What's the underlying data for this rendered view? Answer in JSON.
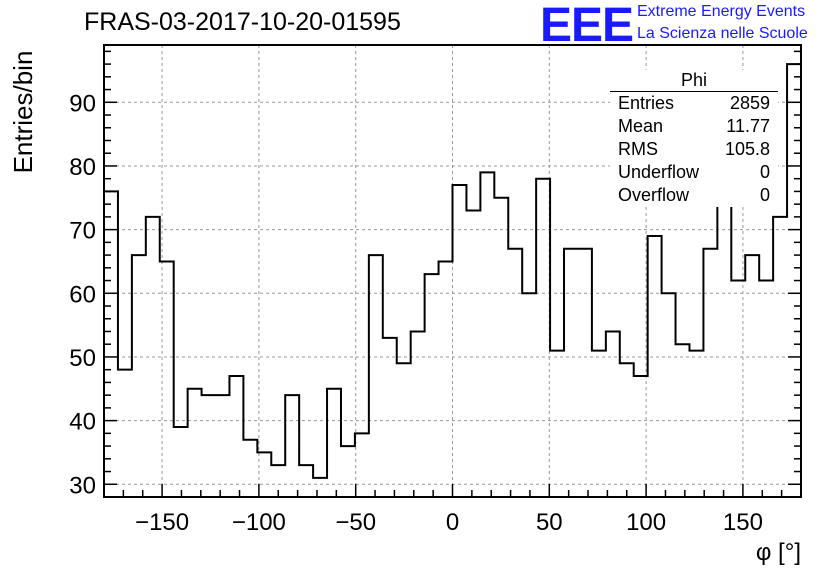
{
  "title": "FRAS-03-2017-10-20-01595",
  "logo": {
    "mark": "EEE",
    "line1": "Extreme Energy Events",
    "line2": "La Scienza nelle Scuole"
  },
  "stats_box": {
    "title": "Phi",
    "rows": [
      {
        "label": "Entries",
        "value": "2859"
      },
      {
        "label": "Mean",
        "value": "11.77"
      },
      {
        "label": "RMS",
        "value": "105.8"
      },
      {
        "label": "Underflow",
        "value": "0"
      },
      {
        "label": "Overflow",
        "value": "0"
      }
    ]
  },
  "colors": {
    "line": "#000000",
    "grid": "#999999",
    "accent": "#1a1aff"
  },
  "chart_data": {
    "type": "histogram",
    "xlabel": "φ [°]",
    "ylabel": "Entries/bin",
    "xlim": [
      -180,
      180
    ],
    "ylim": [
      28,
      99
    ],
    "x_ticks": [
      -150,
      -100,
      -50,
      0,
      50,
      100,
      150
    ],
    "x_tick_labels": [
      "−150",
      "−100",
      "−50",
      "0",
      "50",
      "100",
      "150"
    ],
    "y_ticks": [
      30,
      40,
      50,
      60,
      70,
      80,
      90
    ],
    "y_tick_labels": [
      "30",
      "40",
      "50",
      "60",
      "70",
      "80",
      "90"
    ],
    "grid": true,
    "bin_edges_start": -180,
    "bin_width": 7.2,
    "values": [
      76,
      48,
      66,
      72,
      65,
      39,
      45,
      44,
      44,
      47,
      37,
      35,
      33,
      44,
      33,
      31,
      45,
      36,
      38,
      66,
      53,
      49,
      54,
      63,
      65,
      77,
      73,
      79,
      75,
      67,
      60,
      78,
      51,
      67,
      67,
      51,
      54,
      49,
      47,
      69,
      60,
      52,
      51,
      67,
      79,
      62,
      66,
      62,
      72,
      96
    ]
  }
}
